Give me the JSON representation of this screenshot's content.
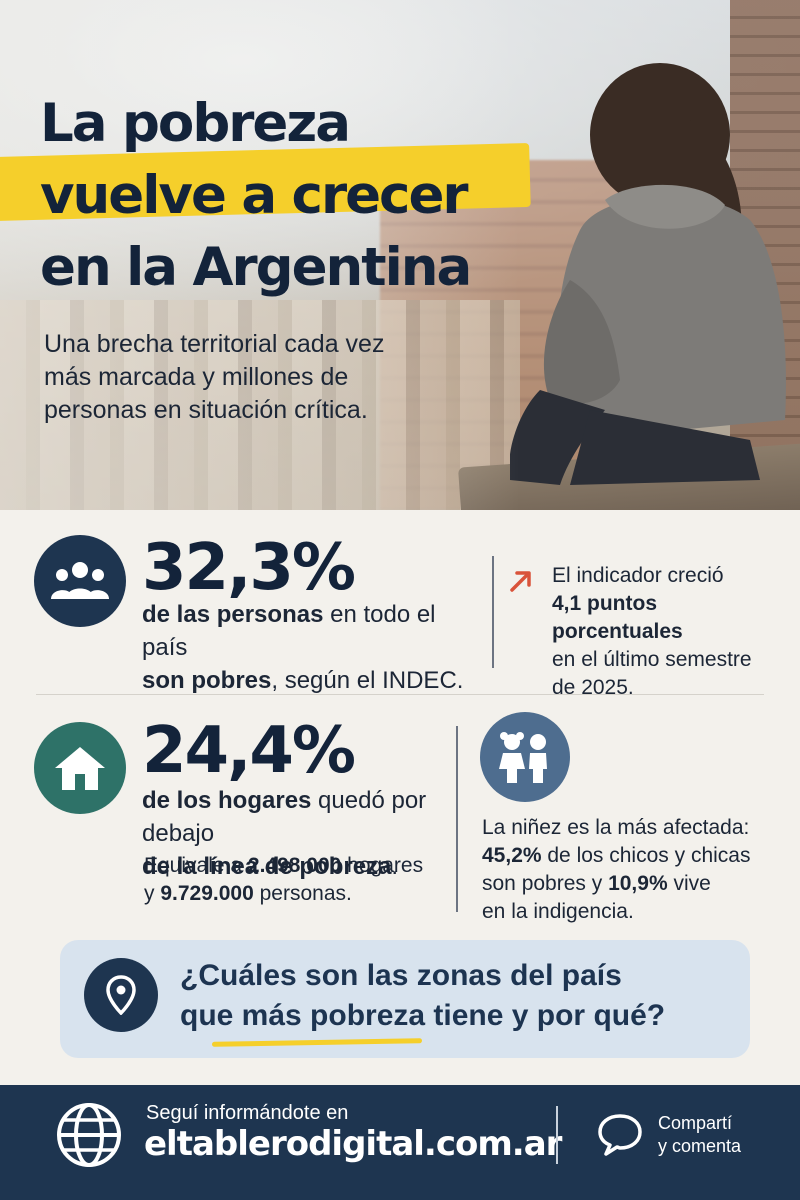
{
  "title": {
    "line1": "La pobreza",
    "line2": "vuelve a crecer",
    "line3": "en la Argentina"
  },
  "subtitle": "Una brecha territorial cada vez más marcada y millones de personas en situación crítica.",
  "stat1": {
    "value": "32,3%",
    "desc_a": "de las personas",
    "desc_b": " en todo el país",
    "desc_c": "son pobres",
    "desc_d": ", según el INDEC.",
    "icon": "people-icon",
    "icon_color": "#1e3550"
  },
  "stat1_side": {
    "line1": "El indicador creció",
    "line2": "4,1 puntos porcentuales",
    "line3": "en el último semestre",
    "line4": "de 2025.",
    "icon": "trend-up-arrow-icon",
    "icon_color": "#d9533a"
  },
  "stat2": {
    "value": "24,4%",
    "desc_a": "de los hogares",
    "desc_b": " quedó por debajo",
    "desc_c": "de la línea de pobreza",
    "desc_d": ".",
    "equiv_a": "Equivale a ",
    "equiv_b": "2.498.000",
    "equiv_c": " hogares",
    "equiv_d": "y ",
    "equiv_e": "9.729.000",
    "equiv_f": " personas.",
    "icon": "house-icon",
    "icon_color": "#2e7268"
  },
  "stat2_side": {
    "line1": "La niñez es la más afectada:",
    "line2_b": "45,2%",
    "line2_rest": " de los chicos y chicas",
    "line3_a": "son pobres y ",
    "line3_b": "10,9%",
    "line3_c": " vive",
    "line4": "en la indigencia.",
    "icon": "children-icon",
    "icon_color": "#4e6d8f"
  },
  "cta": {
    "line1": "¿Cuáles son las zonas del país",
    "line2": "que más pobreza tiene y por qué?",
    "icon": "location-pin-icon"
  },
  "footer": {
    "small": "Seguí informándote en",
    "site": "eltablerodigital.com.ar",
    "share1": "Compartí",
    "share2": "y comenta",
    "icons": [
      "globe-icon",
      "chat-bubble-icon"
    ]
  },
  "colors": {
    "navy": "#1e3550",
    "yellow": "#f5cf2b",
    "teal": "#2e7268",
    "red_arrow": "#d9533a",
    "background": "#f3f1ec"
  }
}
